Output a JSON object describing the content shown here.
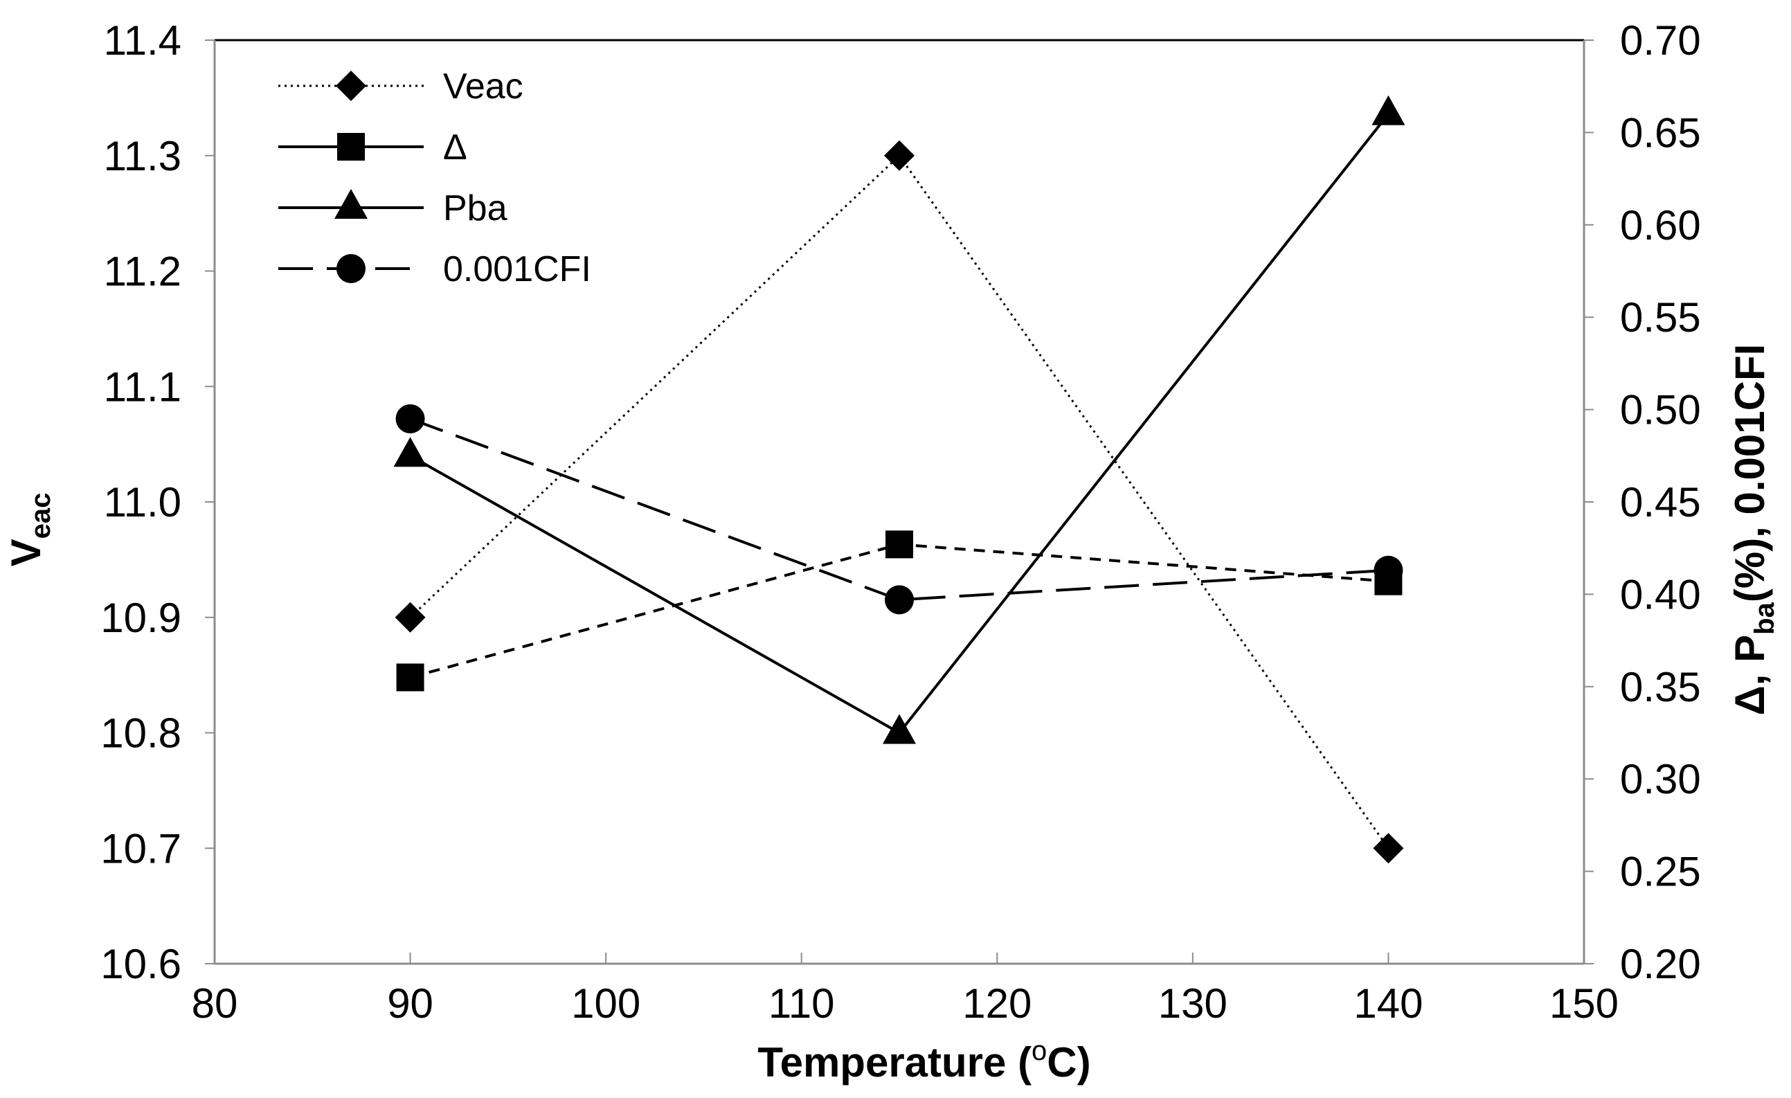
{
  "chart_data": {
    "type": "line",
    "title": "",
    "xlabel": {
      "main": "Temperature (",
      "sup": "o",
      "tail": "C)"
    },
    "ylabel_left": {
      "main": "V",
      "sub": "eac"
    },
    "ylabel_right": {
      "part1": "Δ, P",
      "sub": "ba",
      "part2": "(%),  0.001CFI"
    },
    "xlim": [
      80,
      150
    ],
    "ylim_left": [
      10.6,
      11.4
    ],
    "ylim_right": [
      0.2,
      0.7
    ],
    "x_ticks": [
      "80",
      "90",
      "100",
      "110",
      "120",
      "130",
      "140",
      "150"
    ],
    "y_left_ticks": [
      "10.6",
      "10.7",
      "10.8",
      "10.9",
      "11.0",
      "11.1",
      "11.2",
      "11.3",
      "11.4"
    ],
    "y_right_ticks": [
      "0.20",
      "0.25",
      "0.30",
      "0.35",
      "0.40",
      "0.45",
      "0.50",
      "0.55",
      "0.60",
      "0.65",
      "0.70"
    ],
    "grid": false,
    "legend_position": "top-left",
    "series": [
      {
        "name": "Veac",
        "axis": "left",
        "marker": "diamond",
        "line": "dotted",
        "x": [
          90,
          115,
          140
        ],
        "values": [
          10.9,
          11.3,
          10.7
        ]
      },
      {
        "name": "Δ",
        "axis": "right",
        "marker": "square",
        "line": "short-dash",
        "legend_line": "solid",
        "x": [
          90,
          115,
          140
        ],
        "values": [
          0.355,
          0.427,
          0.407
        ]
      },
      {
        "name": "Pba",
        "axis": "right",
        "marker": "triangle",
        "line": "solid",
        "x": [
          90,
          115,
          140
        ],
        "values": [
          0.475,
          0.325,
          0.66
        ]
      },
      {
        "name": "0.001CFI",
        "axis": "right",
        "marker": "circle",
        "line": "long-dash",
        "x": [
          90,
          115,
          140
        ],
        "values": [
          0.495,
          0.397,
          0.413
        ]
      }
    ]
  }
}
